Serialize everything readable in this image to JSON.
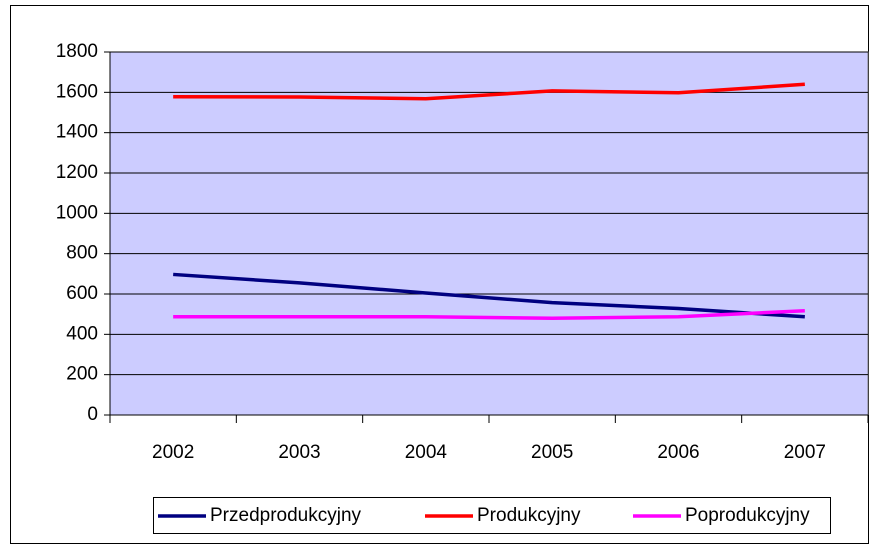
{
  "chart_data": {
    "type": "line",
    "categories": [
      "2002",
      "2003",
      "2004",
      "2005",
      "2006",
      "2007"
    ],
    "series": [
      {
        "name": "Przedprodukcyjny",
        "color": "#000080",
        "values": [
          697,
          655,
          605,
          557,
          528,
          487
        ]
      },
      {
        "name": "Produkcyjny",
        "color": "#ff0000",
        "values": [
          1578,
          1577,
          1568,
          1607,
          1598,
          1640
        ]
      },
      {
        "name": "Poprodukcyjny",
        "color": "#ff00ff",
        "values": [
          487,
          487,
          487,
          480,
          487,
          517
        ]
      }
    ],
    "ylim": [
      0,
      1800
    ],
    "yticks": [
      0,
      200,
      400,
      600,
      800,
      1000,
      1200,
      1400,
      1600,
      1800
    ],
    "grid": true,
    "legend": "bottom",
    "plot_background": "#ccccff"
  }
}
